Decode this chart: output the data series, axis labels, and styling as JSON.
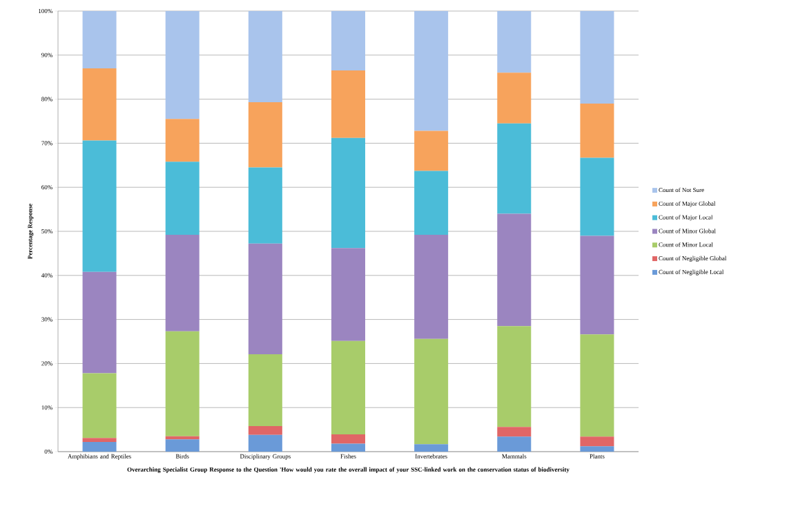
{
  "chart_data": {
    "type": "bar",
    "stacked": true,
    "xlabel": "Overarching Specialist Group Response to the Question 'How would you rate the overall impact of your SSC-linked work on the conservation status of biodiversity",
    "ylabel": "Percentage Response",
    "categories": [
      "Amphibians and Reptiles",
      "Birds",
      "Disciplinary Groups",
      "Fishes",
      "Invertebrates",
      "Mammals",
      "Plants"
    ],
    "series": [
      {
        "name": "Count of Negligible Local",
        "color": "#6a9ad8",
        "values": [
          2.2,
          2.8,
          3.8,
          1.8,
          1.7,
          3.4,
          1.2
        ]
      },
      {
        "name": "Count of Negligible Global",
        "color": "#e06666",
        "values": [
          0.9,
          0.7,
          2.0,
          2.1,
          0,
          2.2,
          2.2
        ]
      },
      {
        "name": "Count of Minor Local",
        "color": "#a8cc6a",
        "values": [
          14.7,
          23.8,
          16.3,
          21.2,
          23.9,
          22.9,
          23.2
        ]
      },
      {
        "name": "Count of Minor Global",
        "color": "#9b85c0",
        "values": [
          23.0,
          21.9,
          25.1,
          21.1,
          23.6,
          25.5,
          22.4
        ]
      },
      {
        "name": "Count of Major Local",
        "color": "#4bbcd8",
        "values": [
          29.8,
          16.6,
          17.3,
          25.0,
          14.5,
          20.5,
          17.7
        ]
      },
      {
        "name": "Count of Major Global",
        "color": "#f7a35c",
        "values": [
          16.4,
          9.7,
          14.8,
          15.3,
          9.1,
          11.5,
          12.3
        ]
      },
      {
        "name": "Count of Not Sure",
        "color": "#a9c4ec",
        "values": [
          13.0,
          24.5,
          20.7,
          13.5,
          27.2,
          14.0,
          21.0
        ]
      }
    ],
    "ylim": [
      0,
      100
    ],
    "yticks": [
      {
        "value": 0,
        "label": "0%"
      },
      {
        "value": 10,
        "label": "10%"
      },
      {
        "value": 20,
        "label": "20%"
      },
      {
        "value": 30,
        "label": "30%"
      },
      {
        "value": 40,
        "label": "40%"
      },
      {
        "value": 50,
        "label": "50%"
      },
      {
        "value": 60,
        "label": "60%"
      },
      {
        "value": 70,
        "label": "70%"
      },
      {
        "value": 80,
        "label": "80%"
      },
      {
        "value": 90,
        "label": "90%"
      },
      {
        "value": 100,
        "label": "100%"
      }
    ],
    "grid": "y",
    "legend": "right"
  }
}
